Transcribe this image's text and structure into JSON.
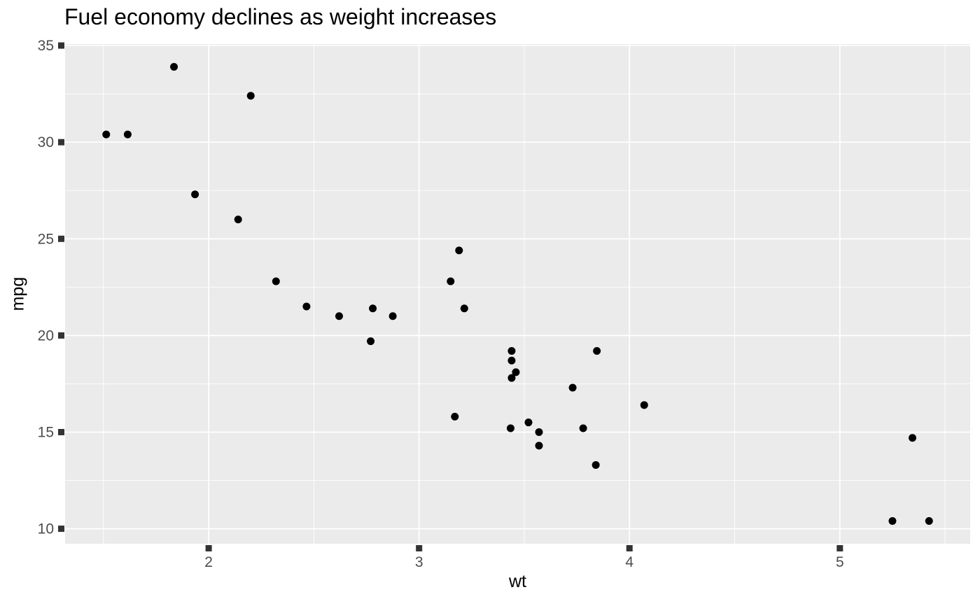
{
  "figure": {
    "title": "Fuel economy declines as weight increases",
    "x_axis_label": "wt",
    "y_axis_label": "mpg"
  },
  "chart_data": {
    "type": "scatter",
    "title": "Fuel economy declines as weight increases",
    "xlabel": "wt",
    "ylabel": "mpg",
    "legend": "none",
    "grid": "major-and-minor-white-on-grey-panel",
    "x_ticks": [
      2,
      3,
      4,
      5
    ],
    "y_ticks": [
      10,
      15,
      20,
      25,
      30,
      35
    ],
    "x_minor_ticks": [
      1.5,
      2.5,
      3.5,
      4.5,
      5.5
    ],
    "y_minor_ticks": [
      12.5,
      17.5,
      22.5,
      27.5,
      32.5
    ],
    "xlim": [
      1.3175,
      5.6195
    ],
    "ylim": [
      9.225,
      35.075
    ],
    "points": [
      [
        2.62,
        21.0
      ],
      [
        2.875,
        21.0
      ],
      [
        2.32,
        22.8
      ],
      [
        3.215,
        21.4
      ],
      [
        3.44,
        18.7
      ],
      [
        3.46,
        18.1
      ],
      [
        3.57,
        14.3
      ],
      [
        3.19,
        24.4
      ],
      [
        3.15,
        22.8
      ],
      [
        3.44,
        19.2
      ],
      [
        3.44,
        17.8
      ],
      [
        4.07,
        16.4
      ],
      [
        3.73,
        17.3
      ],
      [
        3.78,
        15.2
      ],
      [
        5.25,
        10.4
      ],
      [
        5.424,
        10.4
      ],
      [
        5.345,
        14.7
      ],
      [
        2.2,
        32.4
      ],
      [
        1.615,
        30.4
      ],
      [
        1.835,
        33.9
      ],
      [
        2.465,
        21.5
      ],
      [
        3.52,
        15.5
      ],
      [
        3.435,
        15.2
      ],
      [
        3.84,
        13.3
      ],
      [
        3.845,
        19.2
      ],
      [
        1.935,
        27.3
      ],
      [
        2.14,
        26.0
      ],
      [
        1.513,
        30.4
      ],
      [
        3.17,
        15.8
      ],
      [
        2.77,
        19.7
      ],
      [
        3.57,
        15.0
      ],
      [
        2.78,
        21.4
      ]
    ]
  },
  "style": {
    "panel_bg": "#EBEBEB",
    "grid_color": "#FFFFFF",
    "point_color": "#000000",
    "point_radius": 5.5,
    "tick_mark_color": "#333333",
    "tick_label_color": "#4D4D4D",
    "title_color": "#000000",
    "axis_title_color": "#000000"
  }
}
